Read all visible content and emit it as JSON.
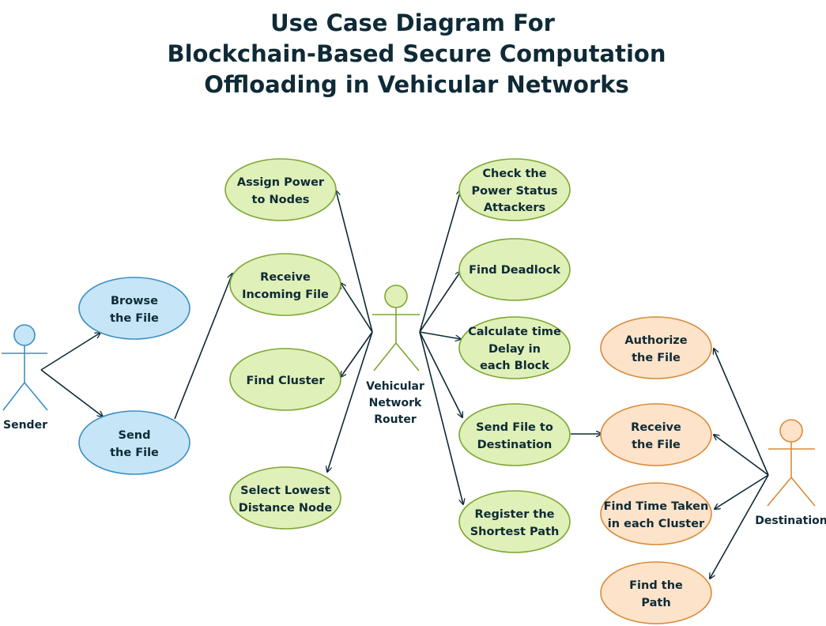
{
  "title": {
    "line1": "Use Case Diagram For",
    "line2": "Blockchain-Based Secure Computation",
    "line3": "Offloading in Vehicular Networks"
  },
  "colors": {
    "blue_fill": "#c6e5f6",
    "blue_stroke": "#3a8fc4",
    "green_fill": "#dff0b8",
    "green_stroke": "#7da634",
    "orange_fill": "#fde3c9",
    "orange_stroke": "#d98a3a",
    "edge": "#0e2a36"
  },
  "actors": {
    "sender": {
      "label": "Sender"
    },
    "router": {
      "line1": "Vehicular",
      "line2": "Network",
      "line3": "Router"
    },
    "destination": {
      "label": "Destination"
    }
  },
  "use_cases": {
    "browse_file": {
      "line1": "Browse",
      "line2": "the File"
    },
    "send_file": {
      "line1": "Send",
      "line2": "the File"
    },
    "assign_power": {
      "line1": "Assign Power",
      "line2": "to Nodes"
    },
    "receive_incoming": {
      "line1": "Receive",
      "line2": "Incoming File"
    },
    "find_cluster": {
      "line1": "Find Cluster"
    },
    "select_lowest": {
      "line1": "Select Lowest",
      "line2": "Distance Node"
    },
    "check_power": {
      "line1": "Check the",
      "line2": "Power Status",
      "line3": "Attackers"
    },
    "find_deadlock": {
      "line1": "Find Deadlock"
    },
    "calc_delay": {
      "line1": "Calculate time",
      "line2": "Delay in",
      "line3": "each Block"
    },
    "send_to_dest": {
      "line1": "Send File to",
      "line2": "Destination"
    },
    "register_path": {
      "line1": "Register the",
      "line2": "Shortest Path"
    },
    "authorize_file": {
      "line1": "Authorize",
      "line2": "the File"
    },
    "receive_file": {
      "line1": "Receive",
      "line2": "the File"
    },
    "find_time": {
      "line1": "Find Time Taken",
      "line2": "in each Cluster"
    },
    "find_path": {
      "line1": "Find the",
      "line2": "Path"
    }
  }
}
